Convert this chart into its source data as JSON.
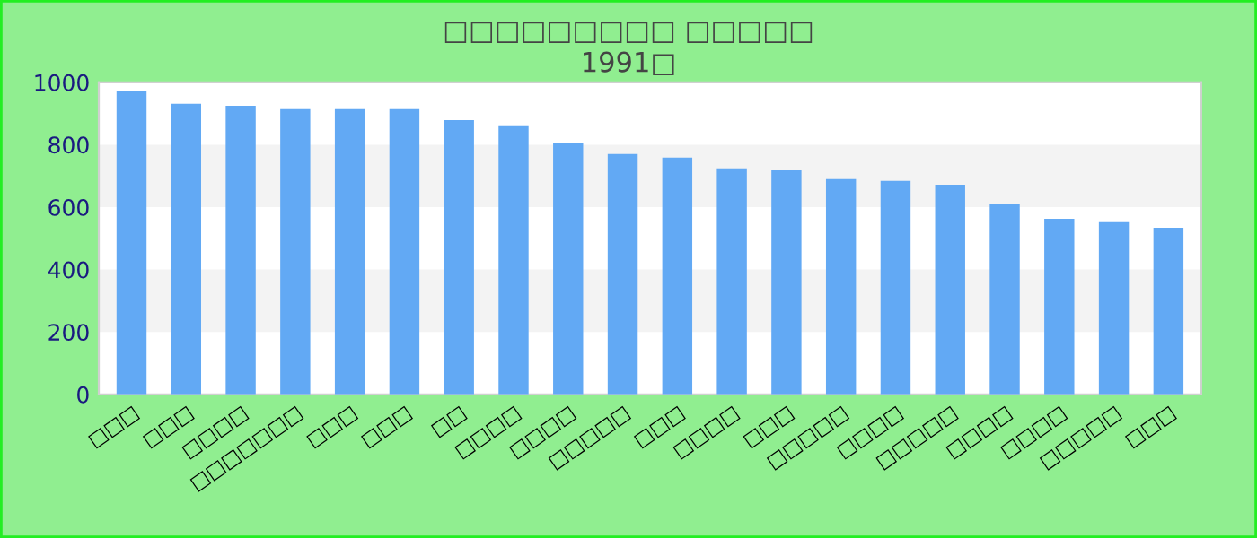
{
  "chart_data": {
    "type": "bar",
    "title": "□□□□□□□□□ □□□□□",
    "subtitle": "1991□",
    "categories": [
      "□□□",
      "□□□",
      "□□□□",
      "□□□□□□□",
      "□□□",
      "□□□",
      "□□",
      "□□□□",
      "□□□□",
      "□□□□□",
      "□□□",
      "□□□□",
      "□□□",
      "□□□□□",
      "□□□□",
      "□□□□□",
      "□□□□",
      "□□□□",
      "□□□□□",
      "□□□"
    ],
    "values": [
      971,
      931,
      925,
      914,
      914,
      914,
      879,
      862,
      805,
      770,
      759,
      724,
      718,
      690,
      684,
      672,
      609,
      563,
      552,
      534
    ],
    "color": "#62a9f4",
    "ylim": [
      0,
      1000
    ],
    "yticks": [
      0,
      200,
      400,
      600,
      800,
      1000
    ],
    "bands": [
      {
        "axis": "y",
        "from": 200,
        "to": 400,
        "color": "#f3f3f3"
      },
      {
        "axis": "y",
        "from": 600,
        "to": 800,
        "color": "#f3f3f3"
      }
    ]
  }
}
